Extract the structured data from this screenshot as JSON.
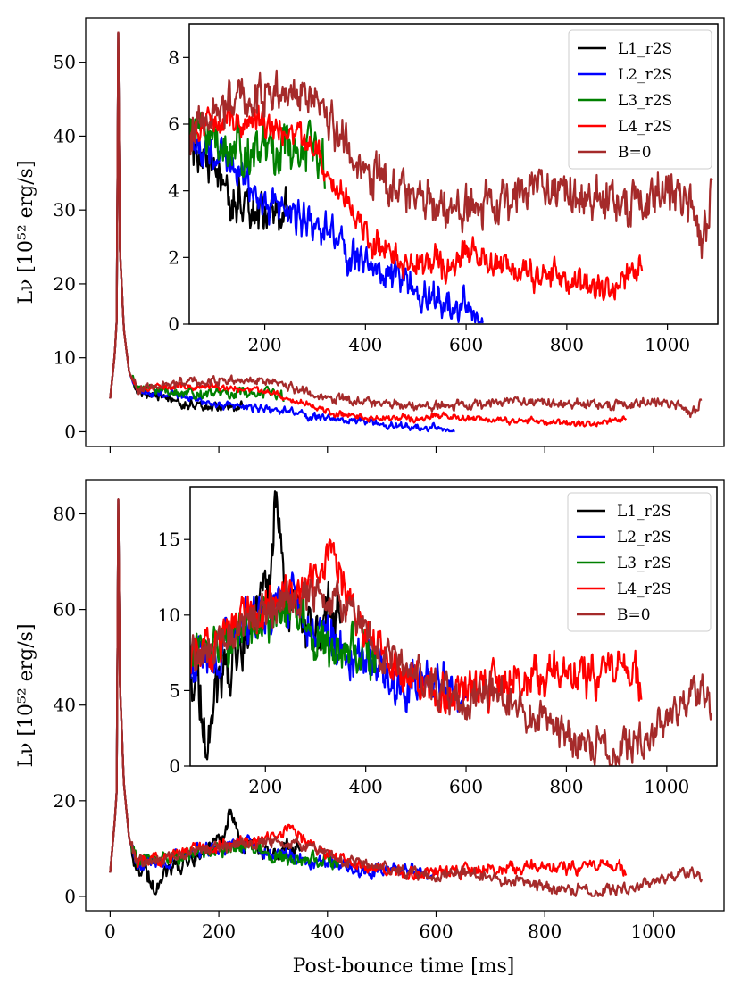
{
  "figure": {
    "shared_xlabel": "Post-bounce time [ms]",
    "ylabel_top": "Lν [10⁵² erg/s]",
    "ylabel_bottom": "Lν [10⁵² erg/s]"
  },
  "chart_data": [
    {
      "type": "line",
      "panel": "top-main",
      "xlabel": "Post-bounce time [ms]",
      "ylabel": "Lν [10⁵² erg/s]",
      "xlim": [
        -45,
        1130
      ],
      "ylim": [
        -2,
        56
      ],
      "xticks": [
        0,
        200,
        400,
        600,
        800,
        1000
      ],
      "xtick_labels_visible": false,
      "yticks": [
        0,
        10,
        20,
        30,
        40,
        50
      ],
      "series": [
        {
          "name": "L1_r2S",
          "color": "#000000",
          "end": 250,
          "peak": 54,
          "keys": [
            [
              0,
              4.5
            ],
            [
              8,
              10
            ],
            [
              12,
              15
            ],
            [
              15,
              54
            ],
            [
              18,
              25
            ],
            [
              25,
              14
            ],
            [
              35,
              8
            ],
            [
              50,
              5.5
            ],
            [
              80,
              5
            ],
            [
              120,
              4.2
            ],
            [
              160,
              3.6
            ],
            [
              200,
              3.2
            ],
            [
              230,
              3.4
            ],
            [
              250,
              3.8
            ]
          ],
          "noise": 0.5
        },
        {
          "name": "L2_r2S",
          "color": "#0000ff",
          "end": 635,
          "peak": 54,
          "keys": [
            [
              0,
              4.5
            ],
            [
              8,
              10
            ],
            [
              12,
              15
            ],
            [
              15,
              54
            ],
            [
              18,
              25
            ],
            [
              25,
              14
            ],
            [
              35,
              8
            ],
            [
              50,
              5.5
            ],
            [
              100,
              5
            ],
            [
              150,
              4.5
            ],
            [
              200,
              3.5
            ],
            [
              260,
              3.3
            ],
            [
              320,
              3.0
            ],
            [
              360,
              2.2
            ],
            [
              400,
              1.8
            ],
            [
              450,
              1.4
            ],
            [
              480,
              1.5
            ],
            [
              520,
              0.8
            ],
            [
              570,
              0.5
            ],
            [
              635,
              0.4
            ]
          ],
          "noise": 0.35
        },
        {
          "name": "L3_r2S",
          "color": "#008000",
          "end": 320,
          "peak": 54,
          "keys": [
            [
              0,
              4.5
            ],
            [
              8,
              10
            ],
            [
              12,
              15
            ],
            [
              15,
              54
            ],
            [
              18,
              25
            ],
            [
              25,
              14
            ],
            [
              35,
              8
            ],
            [
              50,
              5.8
            ],
            [
              100,
              5.5
            ],
            [
              150,
              5.2
            ],
            [
              200,
              5.0
            ],
            [
              250,
              5.3
            ],
            [
              300,
              5.0
            ],
            [
              320,
              4.6
            ]
          ],
          "noise": 0.55
        },
        {
          "name": "L4_r2S",
          "color": "#ff0000",
          "end": 950,
          "peak": 54,
          "keys": [
            [
              0,
              4.5
            ],
            [
              8,
              10
            ],
            [
              12,
              15
            ],
            [
              15,
              54
            ],
            [
              18,
              25
            ],
            [
              25,
              14
            ],
            [
              35,
              8
            ],
            [
              50,
              5.8
            ],
            [
              100,
              6
            ],
            [
              150,
              6
            ],
            [
              200,
              6
            ],
            [
              250,
              5.8
            ],
            [
              300,
              5.2
            ],
            [
              340,
              4.2
            ],
            [
              380,
              3.2
            ],
            [
              420,
              2.4
            ],
            [
              480,
              1.8
            ],
            [
              560,
              1.8
            ],
            [
              600,
              2.2
            ],
            [
              700,
              1.6
            ],
            [
              800,
              1.4
            ],
            [
              850,
              1.1
            ],
            [
              900,
              1.2
            ],
            [
              950,
              2.0
            ]
          ],
          "noise": 0.3
        },
        {
          "name": "B=0",
          "color": "#a52a2a",
          "end": 1090,
          "peak": 54,
          "keys": [
            [
              0,
              4.5
            ],
            [
              8,
              10
            ],
            [
              12,
              15
            ],
            [
              15,
              54
            ],
            [
              18,
              25
            ],
            [
              25,
              14
            ],
            [
              35,
              8
            ],
            [
              50,
              6
            ],
            [
              100,
              6.5
            ],
            [
              150,
              6.8
            ],
            [
              200,
              7
            ],
            [
              250,
              7
            ],
            [
              300,
              6.8
            ],
            [
              340,
              6
            ],
            [
              400,
              4.5
            ],
            [
              460,
              4
            ],
            [
              520,
              3.8
            ],
            [
              600,
              3.3
            ],
            [
              700,
              3.8
            ],
            [
              750,
              4.2
            ],
            [
              850,
              3.8
            ],
            [
              900,
              3.6
            ],
            [
              950,
              3.6
            ],
            [
              1000,
              4.2
            ],
            [
              1050,
              3.5
            ],
            [
              1070,
              2.3
            ],
            [
              1090,
              4.5
            ]
          ],
          "noise": 0.45
        }
      ]
    },
    {
      "type": "line",
      "panel": "top-inset",
      "xlim": [
        50,
        1100
      ],
      "ylim": [
        0,
        9
      ],
      "xticks": [
        200,
        400,
        600,
        800,
        1000
      ],
      "yticks": [
        0,
        2,
        4,
        6,
        8
      ],
      "legend": "top-right",
      "legend_entries": [
        "L1_r2S",
        "L2_r2S",
        "L3_r2S",
        "L4_r2S",
        "B=0"
      ],
      "series_ref": "top-main"
    },
    {
      "type": "line",
      "panel": "bottom-main",
      "xlabel": "Post-bounce time [ms]",
      "ylabel": "Lν [10⁵² erg/s]",
      "xlim": [
        -45,
        1130
      ],
      "ylim": [
        -3,
        87
      ],
      "xticks": [
        0,
        200,
        400,
        600,
        800,
        1000
      ],
      "yticks": [
        0,
        20,
        40,
        60,
        80
      ],
      "series": [
        {
          "name": "L1_r2S",
          "color": "#000000",
          "end": 350,
          "peak": 83,
          "keys": [
            [
              0,
              5
            ],
            [
              8,
              15
            ],
            [
              12,
              22
            ],
            [
              15,
              83
            ],
            [
              18,
              45
            ],
            [
              25,
              24
            ],
            [
              35,
              12
            ],
            [
              50,
              6
            ],
            [
              60,
              5.5
            ],
            [
              75,
              3.5
            ],
            [
              80,
              2.2
            ],
            [
              100,
              5
            ],
            [
              140,
              7.5
            ],
            [
              180,
              10
            ],
            [
              210,
              12
            ],
            [
              220,
              18
            ],
            [
              240,
              11
            ],
            [
              270,
              10
            ],
            [
              300,
              8
            ],
            [
              330,
              11
            ],
            [
              350,
              10
            ]
          ],
          "noise": 1.2
        },
        {
          "name": "L2_r2S",
          "color": "#0000ff",
          "end": 600,
          "peak": 83,
          "keys": [
            [
              0,
              5
            ],
            [
              8,
              15
            ],
            [
              12,
              22
            ],
            [
              15,
              83
            ],
            [
              18,
              45
            ],
            [
              25,
              24
            ],
            [
              35,
              12
            ],
            [
              50,
              7
            ],
            [
              100,
              7.5
            ],
            [
              150,
              9
            ],
            [
              200,
              10
            ],
            [
              250,
              11
            ],
            [
              300,
              9
            ],
            [
              350,
              8
            ],
            [
              400,
              7
            ],
            [
              450,
              6
            ],
            [
              500,
              5.5
            ],
            [
              550,
              5
            ],
            [
              600,
              4.5
            ]
          ],
          "noise": 1.1
        },
        {
          "name": "L3_r2S",
          "color": "#008000",
          "end": 420,
          "peak": 83,
          "keys": [
            [
              0,
              5
            ],
            [
              8,
              15
            ],
            [
              12,
              22
            ],
            [
              15,
              83
            ],
            [
              18,
              45
            ],
            [
              25,
              24
            ],
            [
              35,
              12
            ],
            [
              50,
              7.5
            ],
            [
              100,
              8
            ],
            [
              150,
              9
            ],
            [
              200,
              10
            ],
            [
              250,
              10.5
            ],
            [
              300,
              9
            ],
            [
              350,
              8
            ],
            [
              400,
              7.5
            ],
            [
              420,
              7
            ]
          ],
          "noise": 1.1
        },
        {
          "name": "L4_r2S",
          "color": "#ff0000",
          "end": 950,
          "peak": 83,
          "keys": [
            [
              0,
              5
            ],
            [
              8,
              15
            ],
            [
              12,
              22
            ],
            [
              15,
              83
            ],
            [
              18,
              45
            ],
            [
              25,
              24
            ],
            [
              35,
              12
            ],
            [
              50,
              7
            ],
            [
              100,
              8
            ],
            [
              150,
              9.5
            ],
            [
              200,
              10.5
            ],
            [
              250,
              11.5
            ],
            [
              300,
              12
            ],
            [
              330,
              15
            ],
            [
              360,
              11
            ],
            [
              400,
              9
            ],
            [
              450,
              7
            ],
            [
              500,
              5.5
            ],
            [
              550,
              5
            ],
            [
              600,
              5
            ],
            [
              650,
              5.5
            ],
            [
              700,
              6
            ],
            [
              750,
              6
            ],
            [
              800,
              6
            ],
            [
              850,
              6.5
            ],
            [
              900,
              6
            ],
            [
              950,
              5.5
            ]
          ],
          "noise": 1.0
        },
        {
          "name": "B=0",
          "color": "#a52a2a",
          "end": 1090,
          "peak": 83,
          "keys": [
            [
              0,
              5
            ],
            [
              8,
              15
            ],
            [
              12,
              22
            ],
            [
              15,
              83
            ],
            [
              18,
              45
            ],
            [
              25,
              24
            ],
            [
              35,
              12
            ],
            [
              50,
              7.5
            ],
            [
              100,
              8
            ],
            [
              150,
              9.5
            ],
            [
              200,
              10
            ],
            [
              250,
              11
            ],
            [
              300,
              11.5
            ],
            [
              350,
              11
            ],
            [
              400,
              9
            ],
            [
              450,
              7
            ],
            [
              500,
              6
            ],
            [
              550,
              5
            ],
            [
              600,
              4.5
            ],
            [
              650,
              5
            ],
            [
              700,
              4
            ],
            [
              750,
              3
            ],
            [
              800,
              2
            ],
            [
              850,
              1.5
            ],
            [
              900,
              1
            ],
            [
              950,
              1.5
            ],
            [
              1000,
              3
            ],
            [
              1030,
              4.5
            ],
            [
              1060,
              5
            ],
            [
              1090,
              3.5
            ]
          ],
          "noise": 0.9
        }
      ]
    },
    {
      "type": "line",
      "panel": "bottom-inset",
      "xlim": [
        50,
        1100
      ],
      "ylim": [
        0,
        18.5
      ],
      "xticks": [
        200,
        400,
        600,
        800,
        1000
      ],
      "yticks": [
        0,
        5,
        10,
        15
      ],
      "legend": "top-right",
      "legend_entries": [
        "L1_r2S",
        "L2_r2S",
        "L3_r2S",
        "L4_r2S",
        "B=0"
      ],
      "series_ref": "bottom-main"
    }
  ]
}
